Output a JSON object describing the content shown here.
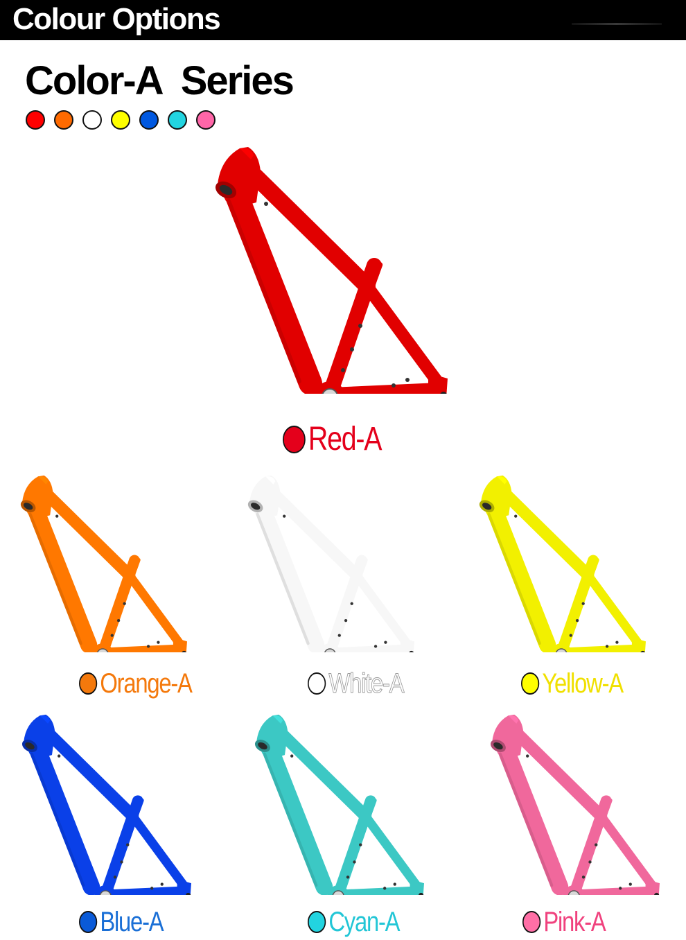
{
  "header": {
    "title": "Colour Options"
  },
  "series": {
    "title": "Color-A  Series"
  },
  "swatches": [
    {
      "name": "red",
      "color": "#ff0000"
    },
    {
      "name": "orange",
      "color": "#ff6a00"
    },
    {
      "name": "white",
      "color": "#ffffff"
    },
    {
      "name": "yellow",
      "color": "#ffff00"
    },
    {
      "name": "blue",
      "color": "#0058e0"
    },
    {
      "name": "cyan",
      "color": "#22d4e0"
    },
    {
      "name": "pink",
      "color": "#ff66a8"
    }
  ],
  "frames": [
    {
      "label": "Red-A",
      "frame_color": "#e10000",
      "dot_color": "#e4001b",
      "text_color": "#e4001b"
    },
    {
      "label": "Orange-A",
      "frame_color": "#ff7800",
      "dot_color": "#f4790c",
      "text_color": "#f4790c"
    },
    {
      "label": "White-A",
      "frame_color": "#f7f7f7",
      "dot_color": "#ffffff",
      "text_color": "#ffffff"
    },
    {
      "label": "Yellow-A",
      "frame_color": "#f2f000",
      "dot_color": "#ffff00",
      "text_color": "#f0e000"
    },
    {
      "label": "Blue-A",
      "frame_color": "#0a40e8",
      "dot_color": "#0a5ad8",
      "text_color": "#1a6fd6"
    },
    {
      "label": "Cyan-A",
      "frame_color": "#3cc8c4",
      "dot_color": "#22d4e0",
      "text_color": "#22c6d6"
    },
    {
      "label": "Pink-A",
      "frame_color": "#f0689c",
      "dot_color": "#ff6fa6",
      "text_color": "#f0427e"
    }
  ]
}
